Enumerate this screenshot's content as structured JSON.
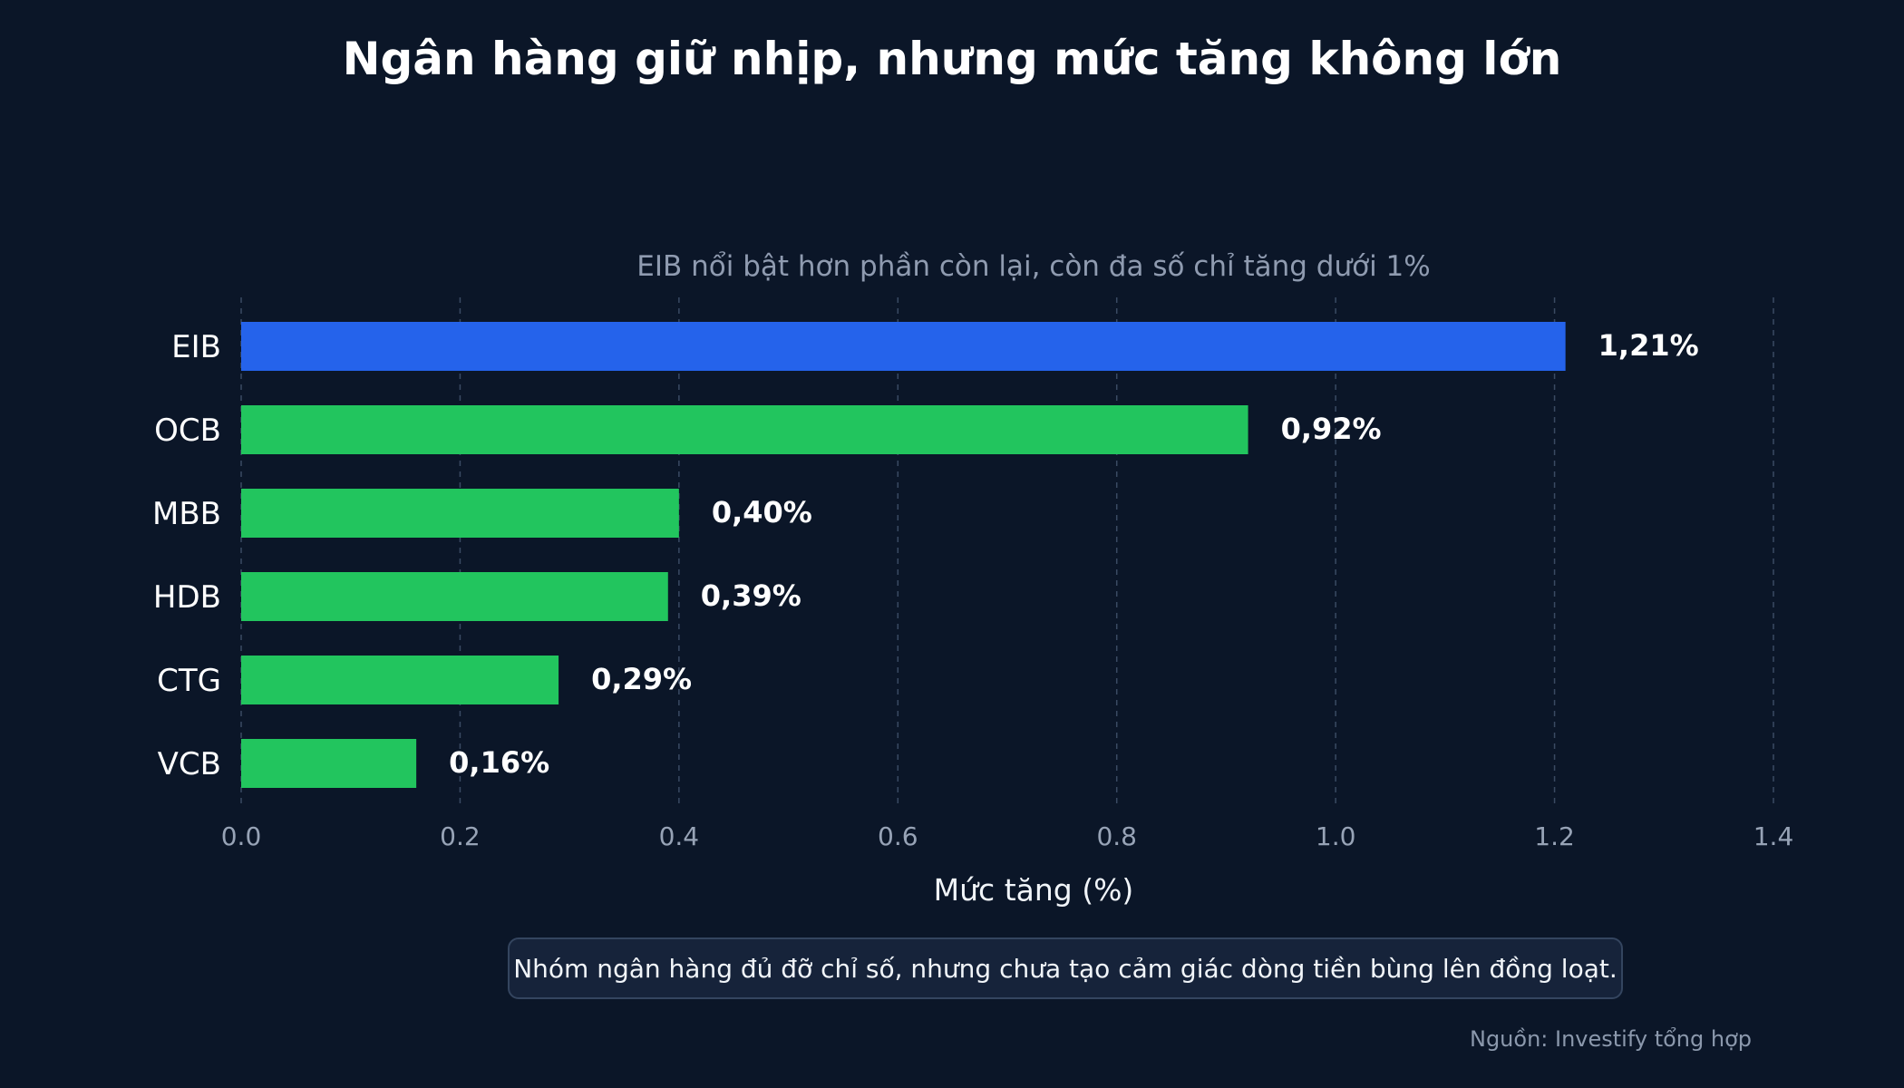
{
  "title": "Ngân hàng giữ nhịp, nhưng mức tăng không lớn",
  "note": "Nhóm ngân hàng đủ đỡ chỉ số, nhưng chưa tạo cảm giác dòng tiền bùng lên đồng loạt.",
  "source": "Nguồn: Investify tổng hợp",
  "colors": {
    "highlight": "#2563eb",
    "default": "#22c55e",
    "grid": "#3a4a63",
    "tick": "#97a3b6",
    "text": "#ffffff"
  },
  "chart_data": {
    "type": "bar",
    "orientation": "horizontal",
    "subtitle": "EIB nổi bật hơn phần còn lại, còn đa số chỉ tăng dưới 1%",
    "xlabel": "Mức tăng (%)",
    "categories": [
      "EIB",
      "OCB",
      "MBB",
      "HDB",
      "CTG",
      "VCB"
    ],
    "values": [
      1.21,
      0.92,
      0.4,
      0.39,
      0.29,
      0.16
    ],
    "value_labels": [
      "1,21%",
      "0,92%",
      "0,40%",
      "0,39%",
      "0,29%",
      "0,16%"
    ],
    "highlight": "EIB",
    "xlim": [
      0,
      1.4
    ],
    "xticks": [
      0.0,
      0.2,
      0.4,
      0.6,
      0.8,
      1.0,
      1.2,
      1.4
    ],
    "xtick_labels": [
      "0.0",
      "0.2",
      "0.4",
      "0.6",
      "0.8",
      "1.0",
      "1.2",
      "1.4"
    ],
    "grid": "vertical dashed",
    "legend": "none"
  }
}
